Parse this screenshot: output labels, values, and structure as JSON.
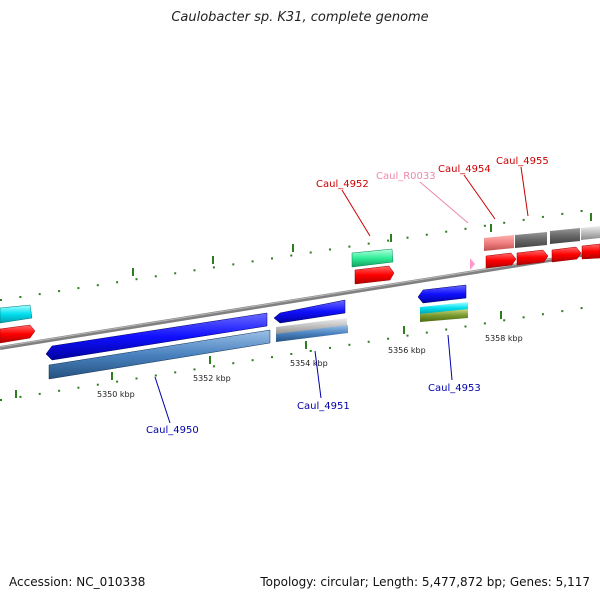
{
  "title": "Caulobacter sp. K31, complete genome",
  "footer": {
    "accession": "Accession: NC_010338",
    "summary": "Topology: circular; Length: 5,477,872 bp; Genes: 5,117"
  },
  "ticks": [
    {
      "label": "5350 kbp"
    },
    {
      "label": "5352 kbp"
    },
    {
      "label": "5354 kbp"
    },
    {
      "label": "5356 kbp"
    },
    {
      "label": "5358 kbp"
    }
  ],
  "gene_labels": [
    {
      "text": "Caul_4952",
      "color": "#cc0000"
    },
    {
      "text": "Caul_R0033",
      "color": "#ee88aa"
    },
    {
      "text": "Caul_4954",
      "color": "#cc0000"
    },
    {
      "text": "Caul_4955",
      "color": "#cc0000"
    },
    {
      "text": "Caul_4950",
      "color": "#0000aa"
    },
    {
      "text": "Caul_4951",
      "color": "#0000aa"
    },
    {
      "text": "Caul_4953",
      "color": "#0000aa"
    }
  ],
  "colors": {
    "forward_strand": "#ff0000",
    "reverse_strand": "#1a1aff",
    "backbone": "#888888",
    "tick_marks": "#2e7d1e",
    "dots": "#2e7d1e"
  }
}
